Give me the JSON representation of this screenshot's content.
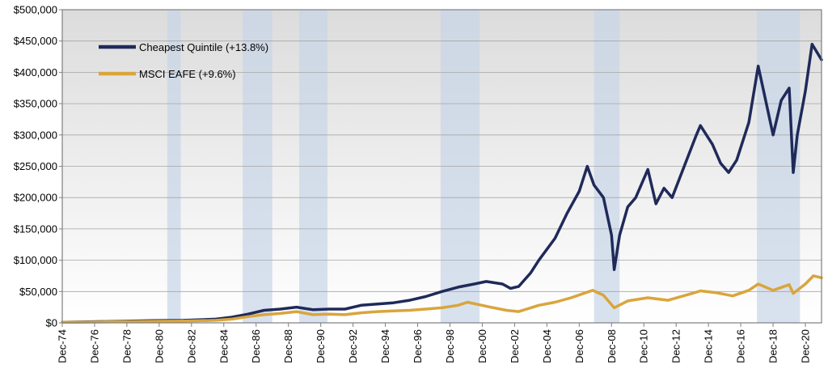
{
  "chart_data": {
    "type": "line",
    "title": "",
    "xlabel": "",
    "ylabel": "",
    "ylim": [
      0,
      500000
    ],
    "y_ticks": [
      {
        "value": 0,
        "label": "$0"
      },
      {
        "value": 50000,
        "label": "$50,000"
      },
      {
        "value": 100000,
        "label": "$100,000"
      },
      {
        "value": 150000,
        "label": "$150,000"
      },
      {
        "value": 200000,
        "label": "$200,000"
      },
      {
        "value": 250000,
        "label": "$250,000"
      },
      {
        "value": 300000,
        "label": "$300,000"
      },
      {
        "value": 350000,
        "label": "$350,000"
      },
      {
        "value": 400000,
        "label": "$400,000"
      },
      {
        "value": 450000,
        "label": "$450,000"
      },
      {
        "value": 500000,
        "label": "$500,000"
      }
    ],
    "x_range": [
      "1974-12",
      "2021-12"
    ],
    "x_ticks": [
      {
        "date": "1974-12",
        "label": "Dec-74"
      },
      {
        "date": "1976-12",
        "label": "Dec-76"
      },
      {
        "date": "1978-12",
        "label": "Dec-78"
      },
      {
        "date": "1980-12",
        "label": "Dec-80"
      },
      {
        "date": "1982-12",
        "label": "Dec-82"
      },
      {
        "date": "1984-12",
        "label": "Dec-84"
      },
      {
        "date": "1986-12",
        "label": "Dec-86"
      },
      {
        "date": "1988-12",
        "label": "Dec-88"
      },
      {
        "date": "1990-12",
        "label": "Dec-90"
      },
      {
        "date": "1992-12",
        "label": "Dec-92"
      },
      {
        "date": "1994-12",
        "label": "Dec-94"
      },
      {
        "date": "1996-12",
        "label": "Dec-96"
      },
      {
        "date": "1998-12",
        "label": "Dec-98"
      },
      {
        "date": "2000-12",
        "label": "Dec-00"
      },
      {
        "date": "2002-12",
        "label": "Dec-02"
      },
      {
        "date": "2004-12",
        "label": "Dec-04"
      },
      {
        "date": "2006-12",
        "label": "Dec-06"
      },
      {
        "date": "2008-12",
        "label": "Dec-08"
      },
      {
        "date": "2010-12",
        "label": "Dec-10"
      },
      {
        "date": "2012-12",
        "label": "Dec-12"
      },
      {
        "date": "2014-12",
        "label": "Dec-14"
      },
      {
        "date": "2016-12",
        "label": "Dec-16"
      },
      {
        "date": "2018-12",
        "label": "Dec-18"
      },
      {
        "date": "2020-12",
        "label": "Dec-20"
      }
    ],
    "grid": true,
    "legend_position": "top-left",
    "shaded_periods": [
      {
        "start": "1981-06",
        "end": "1982-04"
      },
      {
        "start": "1986-02",
        "end": "1987-12"
      },
      {
        "start": "1989-08",
        "end": "1991-05"
      },
      {
        "start": "1998-05",
        "end": "2000-10"
      },
      {
        "start": "2007-11",
        "end": "2009-06"
      },
      {
        "start": "2017-12",
        "end": "2020-08"
      }
    ],
    "series": [
      {
        "name": "Cheapest Quintile (+13.8%)",
        "color": "#1f2a5a",
        "points": [
          [
            "1974-12",
            1000
          ],
          [
            "1976-06",
            1500
          ],
          [
            "1978-06",
            2500
          ],
          [
            "1980-06",
            3500
          ],
          [
            "1982-06",
            4000
          ],
          [
            "1984-06",
            6000
          ],
          [
            "1985-06",
            9000
          ],
          [
            "1986-06",
            14000
          ],
          [
            "1987-06",
            20000
          ],
          [
            "1988-06",
            22000
          ],
          [
            "1989-06",
            25000
          ],
          [
            "1990-06",
            21000
          ],
          [
            "1991-06",
            22000
          ],
          [
            "1992-06",
            22000
          ],
          [
            "1993-06",
            28000
          ],
          [
            "1994-06",
            30000
          ],
          [
            "1995-06",
            32000
          ],
          [
            "1996-06",
            36000
          ],
          [
            "1997-06",
            42000
          ],
          [
            "1998-06",
            50000
          ],
          [
            "1999-06",
            57000
          ],
          [
            "2000-06",
            62000
          ],
          [
            "2001-03",
            66000
          ],
          [
            "2002-03",
            62000
          ],
          [
            "2002-09",
            55000
          ],
          [
            "2003-03",
            58000
          ],
          [
            "2003-12",
            80000
          ],
          [
            "2004-06",
            100000
          ],
          [
            "2005-06",
            135000
          ],
          [
            "2006-03",
            175000
          ],
          [
            "2006-12",
            210000
          ],
          [
            "2007-06",
            250000
          ],
          [
            "2007-11",
            220000
          ],
          [
            "2008-06",
            200000
          ],
          [
            "2008-12",
            140000
          ],
          [
            "2009-02",
            85000
          ],
          [
            "2009-06",
            140000
          ],
          [
            "2009-12",
            185000
          ],
          [
            "2010-06",
            200000
          ],
          [
            "2011-03",
            245000
          ],
          [
            "2011-09",
            190000
          ],
          [
            "2012-03",
            215000
          ],
          [
            "2012-09",
            200000
          ],
          [
            "2013-06",
            250000
          ],
          [
            "2014-03",
            300000
          ],
          [
            "2014-06",
            315000
          ],
          [
            "2015-03",
            285000
          ],
          [
            "2015-09",
            255000
          ],
          [
            "2016-03",
            240000
          ],
          [
            "2016-09",
            260000
          ],
          [
            "2017-06",
            320000
          ],
          [
            "2018-01",
            410000
          ],
          [
            "2018-06",
            360000
          ],
          [
            "2018-12",
            300000
          ],
          [
            "2019-06",
            355000
          ],
          [
            "2019-12",
            375000
          ],
          [
            "2020-03",
            240000
          ],
          [
            "2020-06",
            300000
          ],
          [
            "2020-12",
            370000
          ],
          [
            "2021-05",
            445000
          ],
          [
            "2021-12",
            420000
          ]
        ]
      },
      {
        "name": "MSCI EAFE (+9.6%)",
        "color": "#d9a53c",
        "points": [
          [
            "1974-12",
            1000
          ],
          [
            "1976-06",
            1200
          ],
          [
            "1978-06",
            1800
          ],
          [
            "1980-06",
            2500
          ],
          [
            "1982-06",
            2800
          ],
          [
            "1984-06",
            4000
          ],
          [
            "1985-06",
            6000
          ],
          [
            "1986-06",
            10000
          ],
          [
            "1987-06",
            13000
          ],
          [
            "1988-06",
            15000
          ],
          [
            "1989-06",
            18000
          ],
          [
            "1990-06",
            13000
          ],
          [
            "1991-06",
            14000
          ],
          [
            "1992-06",
            13000
          ],
          [
            "1993-06",
            16000
          ],
          [
            "1994-06",
            18000
          ],
          [
            "1995-06",
            19000
          ],
          [
            "1996-06",
            20000
          ],
          [
            "1997-06",
            22000
          ],
          [
            "1998-06",
            24000
          ],
          [
            "1999-06",
            28000
          ],
          [
            "2000-01",
            33000
          ],
          [
            "2001-06",
            25000
          ],
          [
            "2002-06",
            20000
          ],
          [
            "2003-03",
            18000
          ],
          [
            "2004-06",
            28000
          ],
          [
            "2005-06",
            33000
          ],
          [
            "2006-06",
            40000
          ],
          [
            "2007-10",
            52000
          ],
          [
            "2008-06",
            44000
          ],
          [
            "2009-02",
            24000
          ],
          [
            "2009-12",
            35000
          ],
          [
            "2011-03",
            40000
          ],
          [
            "2012-06",
            36000
          ],
          [
            "2013-12",
            47000
          ],
          [
            "2014-06",
            51000
          ],
          [
            "2015-06",
            48000
          ],
          [
            "2016-06",
            43000
          ],
          [
            "2017-06",
            52000
          ],
          [
            "2018-01",
            62000
          ],
          [
            "2018-12",
            52000
          ],
          [
            "2019-12",
            61000
          ],
          [
            "2020-03",
            47000
          ],
          [
            "2020-12",
            62000
          ],
          [
            "2021-06",
            75000
          ],
          [
            "2021-12",
            72000
          ]
        ]
      }
    ]
  }
}
